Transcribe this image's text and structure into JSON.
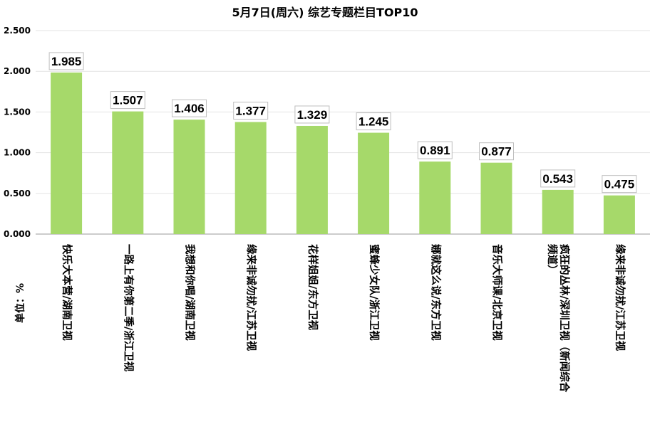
{
  "chart_data": {
    "type": "bar",
    "title": "5月7日(周六)  综艺专题栏目TOP10",
    "ylabel": "单位：%",
    "ylim": [
      0,
      2.5
    ],
    "yticks": [
      "0.000",
      "0.500",
      "1.000",
      "1.500",
      "2.000",
      "2.500"
    ],
    "grid": true,
    "bar_color": "#a6d96a",
    "categories": [
      "快乐大本营/湖南卫视",
      "一路上有你第二季/浙江卫视",
      "我想和你唱/湖南卫视",
      "缘来非诚勿扰/江苏卫视",
      "花样姐姐/东方卫视",
      "蜜蜂少女队/浙江卫视",
      "娜就这么说/东方卫视",
      "音乐大师课/北京卫视",
      "疯狂的丛林/深圳卫视（新闻综合频道）",
      "缘来非诚勿扰/江苏卫视"
    ],
    "category_lines": [
      [
        "快乐大本营/湖南卫视"
      ],
      [
        "一路上有你第二季/浙江卫视"
      ],
      [
        "我想和你唱/湖南卫视"
      ],
      [
        "缘来非诚勿扰/江苏卫视"
      ],
      [
        "花样姐姐/东方卫视"
      ],
      [
        "蜜蜂少女队/浙江卫视"
      ],
      [
        "娜就这么说/东方卫视"
      ],
      [
        "音乐大师课/北京卫视"
      ],
      [
        "疯狂的丛林/深圳卫视（新闻综合",
        "频道）"
      ],
      [
        "缘来非诚勿扰/江苏卫视"
      ]
    ],
    "values": [
      1.985,
      1.507,
      1.406,
      1.377,
      1.329,
      1.245,
      0.891,
      0.877,
      0.543,
      0.475
    ],
    "value_labels": [
      "1.985",
      "1.507",
      "1.406",
      "1.377",
      "1.329",
      "1.245",
      "0.891",
      "0.877",
      "0.543",
      "0.475"
    ]
  }
}
